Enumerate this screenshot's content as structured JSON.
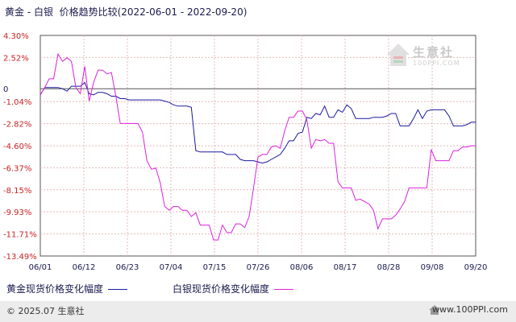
{
  "chart_data": {
    "type": "line",
    "title": "黄金 - 白银  价格趋势比较(2022-06-01 - 2022-09-20)",
    "x_ticks": [
      "06/01",
      "06/12",
      "06/23",
      "07/04",
      "07/15",
      "07/26",
      "08/06",
      "08/17",
      "08/28",
      "09/08",
      "09/20"
    ],
    "y_ticks": [
      "4.30%",
      "2.52%",
      "0",
      "-1.04%",
      "-2.82%",
      "-4.60%",
      "-6.37%",
      "-8.15%",
      "-9.93%",
      "-11.71%",
      "-13.49%"
    ],
    "y_tick_values": [
      4.3,
      2.52,
      0,
      -1.04,
      -2.82,
      -4.6,
      -6.37,
      -8.15,
      -9.93,
      -11.71,
      -13.49
    ],
    "ylim": [
      -13.49,
      4.3
    ],
    "grid": true,
    "legend_position": "bottom",
    "series": [
      {
        "name": "黄金现货价格变化幅度",
        "color": "#1a1aa0",
        "points": [
          [
            0,
            -0.5
          ],
          [
            1,
            0.1
          ],
          [
            2,
            0.1
          ],
          [
            3,
            0.1
          ],
          [
            4,
            0.1
          ],
          [
            5,
            0
          ],
          [
            6,
            -0.2
          ],
          [
            7,
            0.2
          ],
          [
            8,
            0.2
          ],
          [
            9,
            0.2
          ],
          [
            10,
            0.5
          ],
          [
            11,
            -0.4
          ],
          [
            12,
            -0.5
          ],
          [
            13,
            -0.3
          ],
          [
            14,
            -0.3
          ],
          [
            15,
            -0.4
          ],
          [
            16,
            -0.6
          ],
          [
            17,
            -0.6
          ],
          [
            18,
            -0.8
          ],
          [
            19,
            -0.8
          ],
          [
            20,
            -0.9
          ],
          [
            21,
            -0.9
          ],
          [
            22,
            -0.9
          ],
          [
            23,
            -0.9
          ],
          [
            24,
            -0.9
          ],
          [
            25,
            -0.9
          ],
          [
            26,
            -0.9
          ],
          [
            27,
            -0.9
          ],
          [
            28,
            -1.0
          ],
          [
            29,
            -1.1
          ],
          [
            30,
            -1.3
          ],
          [
            31,
            -1.4
          ],
          [
            32,
            -1.4
          ],
          [
            33,
            -1.4
          ],
          [
            34,
            -1.5
          ],
          [
            35,
            -5.0
          ],
          [
            36,
            -5.1
          ],
          [
            37,
            -5.1
          ],
          [
            38,
            -5.1
          ],
          [
            39,
            -5.1
          ],
          [
            40,
            -5.1
          ],
          [
            41,
            -5.1
          ],
          [
            42,
            -5.3
          ],
          [
            43,
            -5.3
          ],
          [
            44,
            -5.3
          ],
          [
            45,
            -5.7
          ],
          [
            46,
            -5.8
          ],
          [
            47,
            -5.8
          ],
          [
            48,
            -5.8
          ],
          [
            49,
            -5.9
          ],
          [
            50,
            -6.0
          ],
          [
            51,
            -5.9
          ],
          [
            52,
            -5.7
          ],
          [
            53,
            -5.5
          ],
          [
            54,
            -5.3
          ],
          [
            55,
            -4.8
          ],
          [
            56,
            -4.2
          ],
          [
            57,
            -4.2
          ],
          [
            58,
            -3.6
          ],
          [
            59,
            -3.5
          ],
          [
            60,
            -2.3
          ],
          [
            61,
            -2.4
          ],
          [
            62,
            -2.0
          ],
          [
            63,
            -2.1
          ],
          [
            64,
            -1.4
          ],
          [
            65,
            -2.3
          ],
          [
            66,
            -2.3
          ],
          [
            67,
            -1.7
          ],
          [
            68,
            -1.9
          ],
          [
            69,
            -1.3
          ],
          [
            70,
            -1.6
          ],
          [
            71,
            -2.4
          ],
          [
            72,
            -2.4
          ],
          [
            73,
            -2.4
          ],
          [
            74,
            -2.4
          ],
          [
            75,
            -2.3
          ],
          [
            76,
            -2.3
          ],
          [
            77,
            -2.3
          ],
          [
            78,
            -2.2
          ],
          [
            79,
            -2.0
          ],
          [
            80,
            -2.0
          ],
          [
            81,
            -3.0
          ],
          [
            82,
            -3.0
          ],
          [
            83,
            -3.0
          ],
          [
            84,
            -2.4
          ],
          [
            85,
            -1.7
          ],
          [
            86,
            -2.4
          ],
          [
            87,
            -1.8
          ],
          [
            88,
            -1.7
          ],
          [
            89,
            -1.7
          ],
          [
            90,
            -1.7
          ],
          [
            91,
            -1.7
          ],
          [
            92,
            -2.2
          ],
          [
            93,
            -3.0
          ],
          [
            94,
            -3.0
          ],
          [
            95,
            -3.0
          ],
          [
            96,
            -2.9
          ],
          [
            97,
            -2.7
          ],
          [
            98,
            -2.7
          ]
        ]
      },
      {
        "name": "白银现货价格变化幅度",
        "color": "#dd22dd",
        "points": [
          [
            0,
            -0.5
          ],
          [
            1,
            0.1
          ],
          [
            2,
            0.8
          ],
          [
            3,
            0.8
          ],
          [
            4,
            2.8
          ],
          [
            5,
            2.2
          ],
          [
            6,
            2.5
          ],
          [
            7,
            2.2
          ],
          [
            8,
            0.1
          ],
          [
            9,
            -0.4
          ],
          [
            10,
            1.8
          ],
          [
            11,
            -1.0
          ],
          [
            12,
            0.5
          ],
          [
            13,
            1.5
          ],
          [
            14,
            1.5
          ],
          [
            15,
            1.2
          ],
          [
            16,
            1.3
          ],
          [
            17,
            -0.6
          ],
          [
            18,
            -2.8
          ],
          [
            19,
            -2.8
          ],
          [
            20,
            -2.8
          ],
          [
            21,
            -2.8
          ],
          [
            22,
            -2.8
          ],
          [
            23,
            -3.5
          ],
          [
            24,
            -5.8
          ],
          [
            25,
            -6.5
          ],
          [
            26,
            -6.4
          ],
          [
            27,
            -7.6
          ],
          [
            28,
            -9.5
          ],
          [
            29,
            -9.8
          ],
          [
            30,
            -9.5
          ],
          [
            31,
            -9.5
          ],
          [
            32,
            -9.8
          ],
          [
            33,
            -9.8
          ],
          [
            34,
            -10.3
          ],
          [
            35,
            -10.0
          ],
          [
            36,
            -11.0
          ],
          [
            37,
            -11.0
          ],
          [
            38,
            -11.0
          ],
          [
            39,
            -12.2
          ],
          [
            40,
            -12.2
          ],
          [
            41,
            -11.0
          ],
          [
            42,
            -11.6
          ],
          [
            43,
            -11.6
          ],
          [
            44,
            -10.9
          ],
          [
            45,
            -10.9
          ],
          [
            46,
            -11.2
          ],
          [
            47,
            -10.3
          ],
          [
            48,
            -8.0
          ],
          [
            49,
            -5.5
          ],
          [
            50,
            -5.3
          ],
          [
            51,
            -5.3
          ],
          [
            52,
            -4.7
          ],
          [
            53,
            -4.6
          ],
          [
            54,
            -4.8
          ],
          [
            55,
            -3.4
          ],
          [
            56,
            -2.3
          ],
          [
            57,
            -2.3
          ],
          [
            58,
            -1.8
          ],
          [
            59,
            -1.8
          ],
          [
            60,
            -2.5
          ],
          [
            61,
            -4.8
          ],
          [
            62,
            -4.1
          ],
          [
            63,
            -4.2
          ],
          [
            64,
            -4.1
          ],
          [
            65,
            -4.4
          ],
          [
            66,
            -4.4
          ],
          [
            67,
            -7.5
          ],
          [
            68,
            -8.0
          ],
          [
            69,
            -8.0
          ],
          [
            70,
            -8.0
          ],
          [
            71,
            -9.0
          ],
          [
            72,
            -8.9
          ],
          [
            73,
            -9.1
          ],
          [
            74,
            -9.3
          ],
          [
            75,
            -9.8
          ],
          [
            76,
            -11.3
          ],
          [
            77,
            -10.5
          ],
          [
            78,
            -10.5
          ],
          [
            79,
            -10.5
          ],
          [
            80,
            -10.2
          ],
          [
            81,
            -9.7
          ],
          [
            82,
            -9.1
          ],
          [
            83,
            -8.0
          ],
          [
            84,
            -8.0
          ],
          [
            85,
            -8.0
          ],
          [
            86,
            -8.0
          ],
          [
            87,
            -8.0
          ],
          [
            88,
            -4.9
          ],
          [
            89,
            -5.8
          ],
          [
            90,
            -5.8
          ],
          [
            91,
            -5.8
          ],
          [
            92,
            -5.8
          ],
          [
            93,
            -5.0
          ],
          [
            94,
            -5.0
          ],
          [
            95,
            -4.7
          ],
          [
            96,
            -4.7
          ],
          [
            97,
            -4.6
          ],
          [
            98,
            -4.6
          ]
        ]
      }
    ]
  },
  "legend": {
    "gold_label": "黄金现货价格变化幅度",
    "silver_label": "白银现货价格变化幅度"
  },
  "watermark": {
    "name": "生意社",
    "url": "100PPI.COM"
  },
  "footer": {
    "copyright": "© 2025.07 生意社",
    "site": "www.100PPI.com"
  }
}
